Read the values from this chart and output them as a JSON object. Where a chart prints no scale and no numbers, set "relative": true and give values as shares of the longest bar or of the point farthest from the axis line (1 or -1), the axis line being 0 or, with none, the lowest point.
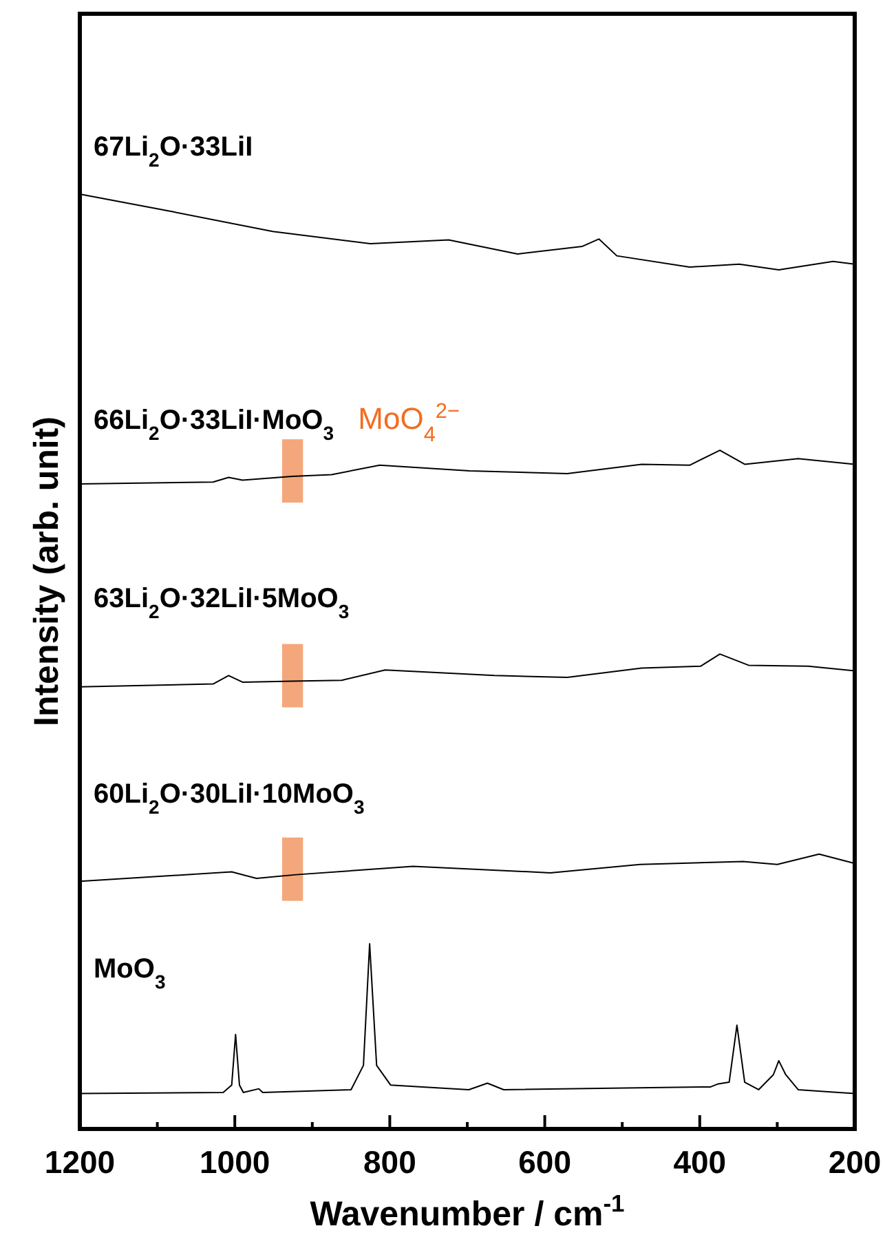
{
  "chart_data": {
    "type": "line",
    "relative": true,
    "xlabel": "Wavenumber / cm$^{-1}$",
    "ylabel": "Intensity (arb. unit)",
    "xlim": [
      1200,
      200
    ],
    "xticks": [
      1200,
      {
        "value": 1100,
        "label": null
      },
      1000,
      {
        "value": 900,
        "label": null
      },
      800,
      {
        "value": 700,
        "label": null
      },
      600,
      {
        "value": 500,
        "label": null
      },
      400,
      {
        "value": 300,
        "label": null
      },
      200
    ],
    "tick_labels": "x",
    "grid": false,
    "line_style": "solid",
    "bands": [
      {
        "axis": "x",
        "from": 939,
        "to": 912,
        "label": "MoO$_{4}$$^{2−}$",
        "color": "#f4a77a"
      }
    ],
    "series": [
      {
        "name": "67Li$_{2}$O·33LiI",
        "color": "#000000",
        "x": [
          1200,
          1079,
          951,
          825,
          724,
          635,
          552,
          530,
          507,
          413,
          349,
          298,
          228,
          200
        ],
        "values": [
          1.0,
          0.981,
          0.96,
          0.947,
          0.951,
          0.936,
          0.944,
          0.952,
          0.934,
          0.922,
          0.925,
          0.919,
          0.928,
          0.925
        ]
      },
      {
        "name": "66Li$_{2}$O·33LiI·MoO$_{3}$",
        "color": "#000000",
        "x": [
          1200,
          1028,
          1008,
          990,
          926,
          875,
          813,
          697,
          571,
          475,
          413,
          374,
          342,
          273,
          200
        ],
        "values": [
          0.69,
          0.692,
          0.697,
          0.694,
          0.698,
          0.7,
          0.71,
          0.704,
          0.701,
          0.711,
          0.71,
          0.726,
          0.711,
          0.717,
          0.711
        ]
      },
      {
        "name": "63Li$_{2}$O·32LiI·5MoO$_{3}$",
        "color": "#000000",
        "x": [
          1200,
          1028,
          1008,
          990,
          926,
          862,
          806,
          665,
          571,
          475,
          399,
          374,
          337,
          260,
          200
        ],
        "values": [
          0.473,
          0.476,
          0.485,
          0.478,
          0.479,
          0.48,
          0.491,
          0.485,
          0.483,
          0.493,
          0.495,
          0.508,
          0.496,
          0.495,
          0.49
        ]
      },
      {
        "name": "60Li$_{2}$O·30LiI·10MoO$_{3}$",
        "color": "#000000",
        "x": [
          1200,
          1004,
          972,
          921,
          770,
          593,
          477,
          344,
          300,
          246,
          200
        ],
        "values": [
          0.265,
          0.275,
          0.268,
          0.272,
          0.281,
          0.274,
          0.283,
          0.286,
          0.283,
          0.294,
          0.284
        ]
      },
      {
        "name": "MoO$_{3}$",
        "color": "#000000",
        "x": [
          1200,
          1015,
          1004,
          999,
          994,
          989,
          969,
          964,
          850,
          834,
          826,
          817,
          799,
          698,
          674,
          653,
          386,
          377,
          362,
          352,
          342,
          324,
          305,
          298,
          289,
          273,
          221,
          200
        ],
        "values": [
          0.038,
          0.039,
          0.047,
          0.101,
          0.047,
          0.039,
          0.043,
          0.039,
          0.042,
          0.068,
          0.198,
          0.068,
          0.047,
          0.042,
          0.049,
          0.042,
          0.045,
          0.048,
          0.05,
          0.111,
          0.05,
          0.042,
          0.058,
          0.073,
          0.058,
          0.042,
          0.039,
          0.038
        ]
      }
    ]
  }
}
